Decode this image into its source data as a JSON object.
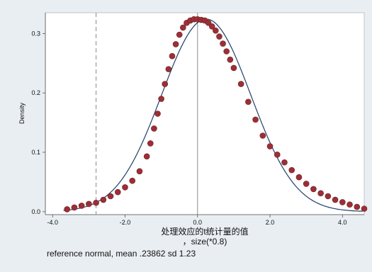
{
  "chart_data": {
    "type": "scatter",
    "xlabel": "处理效应的t统计量的值",
    "xlabel2": "，size(*0.8)",
    "ylabel": "Density",
    "note": "reference normal, mean .23862 sd 1.23",
    "xlim": [
      -4.2,
      4.6
    ],
    "ylim": [
      -0.005,
      0.335
    ],
    "xticks": [
      -4,
      -2,
      0,
      2,
      4
    ],
    "xtick_labels": [
      "-4.0",
      "-2.0",
      "0.0",
      "2.0",
      "4.0"
    ],
    "yticks": [
      0,
      0.1,
      0.2,
      0.3
    ],
    "ytick_labels": [
      "0.0",
      "0.1",
      "0.2",
      "0.3"
    ],
    "vlines": [
      {
        "x": -2.8,
        "style": "dashed"
      },
      {
        "x": 0.0,
        "style": "solid"
      }
    ],
    "reference_normal": {
      "mean": 0.23862,
      "sd": 1.23
    },
    "colors": {
      "density_points": "#9c2f36",
      "normal_curve": "#1f3f66",
      "plot_bg": "#ffffff",
      "outer_bg": "#e9eef2"
    },
    "series": [
      {
        "x": [
          -3.6,
          -3.4,
          -3.2,
          -3.0,
          -2.8,
          -2.6,
          -2.4,
          -2.2,
          -2.0,
          -1.8,
          -1.6,
          -1.4,
          -1.3,
          -1.2,
          -1.1,
          -1.0,
          -0.9,
          -0.8,
          -0.7,
          -0.6,
          -0.5,
          -0.4,
          -0.3,
          -0.2,
          -0.1,
          0.0,
          0.1,
          0.2,
          0.3,
          0.4,
          0.5,
          0.6,
          0.7,
          0.8,
          0.9,
          1.0,
          1.2,
          1.4,
          1.6,
          1.8,
          2.0,
          2.2,
          2.4,
          2.6,
          2.8,
          3.0,
          3.2,
          3.4,
          3.6,
          3.8,
          4.0,
          4.2,
          4.4,
          4.6
        ],
        "y": [
          0.004,
          0.007,
          0.01,
          0.013,
          0.015,
          0.02,
          0.026,
          0.033,
          0.041,
          0.052,
          0.068,
          0.093,
          0.115,
          0.14,
          0.165,
          0.19,
          0.215,
          0.24,
          0.262,
          0.282,
          0.298,
          0.31,
          0.318,
          0.322,
          0.324,
          0.324,
          0.323,
          0.322,
          0.318,
          0.312,
          0.305,
          0.295,
          0.283,
          0.27,
          0.256,
          0.242,
          0.215,
          0.185,
          0.155,
          0.128,
          0.11,
          0.096,
          0.083,
          0.07,
          0.058,
          0.047,
          0.038,
          0.031,
          0.026,
          0.02,
          0.016,
          0.012,
          0.008,
          0.005
        ]
      }
    ]
  }
}
